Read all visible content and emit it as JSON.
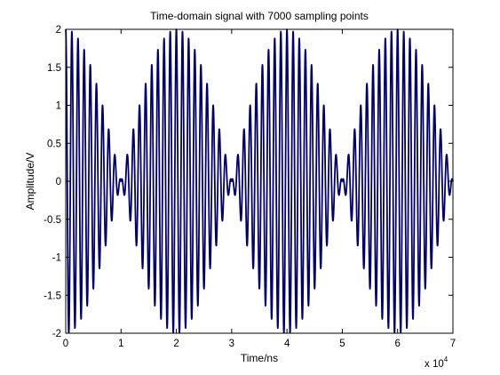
{
  "chart_data": {
    "type": "line",
    "title": "Time-domain signal with 7000 sampling points",
    "xlabel": "Time/ns",
    "ylabel": "Amplitude/V",
    "x_multiplier": {
      "base": "x 10",
      "exponent": "4"
    },
    "xlim": [
      0,
      70000
    ],
    "ylim": [
      -2,
      2
    ],
    "xticks": [
      0,
      10000,
      20000,
      30000,
      40000,
      50000,
      60000,
      70000
    ],
    "xtick_labels": [
      "0",
      "1",
      "2",
      "3",
      "4",
      "5",
      "6",
      "7"
    ],
    "yticks": [
      -2,
      -1.5,
      -1,
      -0.5,
      0,
      0.5,
      1,
      1.5,
      2
    ],
    "ytick_labels": [
      "-2",
      "-1.5",
      "-1",
      "-0.5",
      "0",
      "0.5",
      "1",
      "1.5",
      "2"
    ],
    "grid": false,
    "line_color": "#000066",
    "signal": {
      "model": "amplitude-modulated sinusoid",
      "peak_amplitude_V": 2,
      "envelope_period_ns": 20000,
      "envelope_peaks_ns": [
        0,
        20000,
        40000,
        60000
      ],
      "envelope_nulls_ns": [
        10000,
        30000,
        50000,
        70000
      ],
      "carrier_cycles_per_envelope_period": 18,
      "x_start_ns": 0,
      "x_end_ns": 70000
    }
  }
}
